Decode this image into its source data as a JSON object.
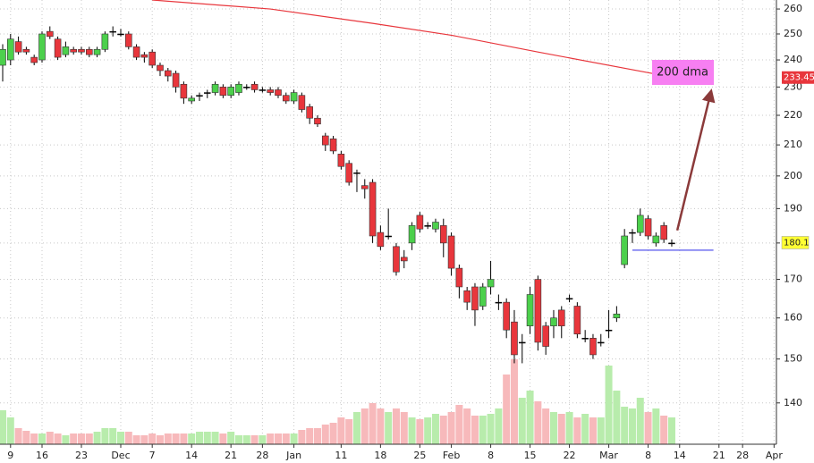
{
  "chart_data": {
    "type": "candlestick",
    "x": [
      0,
      1,
      2,
      3,
      4,
      5,
      6,
      7,
      8,
      9,
      10,
      11,
      12,
      13,
      14,
      15,
      16,
      17,
      18,
      19,
      20,
      21,
      22,
      23,
      24,
      25,
      26,
      27,
      28,
      29,
      30,
      31,
      32,
      33,
      34,
      35,
      36,
      37,
      38,
      39,
      40,
      41,
      42,
      43,
      44,
      45,
      46,
      47,
      48,
      49,
      50,
      51,
      52,
      53,
      54,
      55,
      56,
      57,
      58,
      59,
      60,
      61,
      62,
      63,
      64,
      65,
      66,
      67,
      68,
      69,
      70,
      71,
      72,
      73,
      74,
      75,
      76,
      77,
      78,
      79,
      80,
      81,
      82,
      83,
      84,
      85
    ],
    "open": [
      238,
      240,
      247,
      244,
      241,
      240,
      251,
      248,
      242,
      244,
      244,
      244,
      242,
      244,
      251,
      250,
      250,
      245,
      242,
      243,
      238,
      236,
      235,
      231,
      225,
      227,
      228,
      228,
      230,
      227,
      228,
      230,
      231,
      229,
      229,
      229,
      227,
      225,
      227,
      223,
      219,
      213,
      212,
      207,
      204,
      201,
      197,
      198,
      183,
      182,
      179,
      176,
      180,
      188,
      185,
      184,
      185,
      182,
      173,
      167,
      168,
      163,
      168,
      164,
      164,
      159,
      154,
      158,
      170,
      158,
      158,
      162,
      165,
      163,
      155,
      155,
      154,
      157,
      160,
      174,
      183,
      183,
      187,
      180,
      185,
      180
    ],
    "high": [
      246,
      250,
      249,
      245,
      242,
      251,
      253,
      249,
      247,
      245,
      245,
      245,
      245,
      251,
      253,
      252,
      251,
      246,
      243,
      244,
      239,
      237,
      236,
      232,
      227,
      228,
      229,
      232,
      231,
      231,
      232,
      231,
      232,
      230,
      230,
      230,
      228,
      229,
      228,
      224,
      220,
      214,
      213,
      208,
      205,
      202,
      199,
      199,
      185,
      190,
      180,
      178,
      186,
      189,
      186,
      187,
      187,
      183,
      174,
      168,
      169,
      169,
      175,
      166,
      165,
      162,
      156,
      168,
      171,
      159,
      162,
      163,
      166,
      164,
      157,
      156,
      156,
      162,
      163,
      184,
      184,
      190,
      188,
      183,
      186,
      181
    ],
    "low": [
      232,
      238,
      242,
      242,
      238,
      239,
      248,
      240,
      241,
      242,
      242,
      241,
      241,
      243,
      249,
      249,
      244,
      240,
      239,
      237,
      234,
      232,
      228,
      224,
      224,
      225,
      226,
      227,
      226,
      226,
      227,
      229,
      228,
      228,
      227,
      226,
      224,
      224,
      221,
      217,
      216,
      208,
      207,
      202,
      197,
      195,
      193,
      180,
      178,
      181,
      171,
      173,
      178,
      183,
      184,
      183,
      176,
      171,
      165,
      162,
      158,
      162,
      166,
      162,
      155,
      149,
      149,
      156,
      152,
      151,
      155,
      155,
      164,
      155,
      154,
      150,
      153,
      155,
      159,
      173,
      180,
      182,
      181,
      179,
      180,
      179
    ],
    "close": [
      244,
      248,
      243,
      243,
      239,
      250,
      249,
      241,
      245,
      243,
      243,
      242,
      244,
      250,
      251,
      250,
      245,
      241,
      241,
      238,
      236,
      234,
      230,
      226,
      226,
      227,
      228,
      231,
      227,
      230,
      231,
      230,
      229,
      229,
      228,
      227,
      225,
      228,
      222,
      219,
      217,
      210,
      208,
      203,
      198,
      201,
      196,
      182,
      179,
      182,
      172,
      175,
      185,
      184,
      185,
      186,
      180,
      173,
      168,
      164,
      162,
      168,
      170,
      164,
      157,
      151,
      154,
      166,
      154,
      153,
      160,
      158,
      165,
      156,
      155,
      151,
      154,
      157,
      161,
      182,
      183,
      188,
      182,
      182,
      181,
      180
    ],
    "volume": [
      38,
      30,
      18,
      15,
      12,
      12,
      14,
      12,
      10,
      12,
      12,
      12,
      14,
      18,
      18,
      14,
      14,
      10,
      10,
      12,
      10,
      12,
      12,
      12,
      12,
      14,
      14,
      14,
      12,
      14,
      10,
      10,
      10,
      10,
      12,
      12,
      12,
      12,
      16,
      18,
      18,
      22,
      24,
      30,
      28,
      36,
      40,
      46,
      40,
      36,
      40,
      36,
      30,
      28,
      30,
      34,
      32,
      36,
      44,
      40,
      32,
      32,
      34,
      40,
      78,
      95,
      52,
      60,
      48,
      40,
      36,
      34,
      36,
      30,
      34,
      30,
      30,
      88,
      60,
      42,
      40,
      52,
      36,
      40,
      32,
      30
    ],
    "volume_lim": [
      0,
      100
    ],
    "up_color": "#4cd04c",
    "down_color": "#e8363c",
    "up_volume_color": "#b8ecac",
    "down_volume_color": "#f7b9bb",
    "xlim": [
      -0.34,
      98.3
    ],
    "xticks": [
      {
        "value": 1,
        "label": "9"
      },
      {
        "value": 5,
        "label": "16"
      },
      {
        "value": 10,
        "label": "23"
      },
      {
        "value": 15,
        "label": "Dec"
      },
      {
        "value": 19,
        "label": "7"
      },
      {
        "value": 24,
        "label": "14"
      },
      {
        "value": 29,
        "label": "21"
      },
      {
        "value": 33,
        "label": "28"
      },
      {
        "value": 37,
        "label": "Jan"
      },
      {
        "value": 43,
        "label": "11"
      },
      {
        "value": 48,
        "label": "18"
      },
      {
        "value": 53,
        "label": "25"
      },
      {
        "value": 57,
        "label": "Feb"
      },
      {
        "value": 62,
        "label": "8"
      },
      {
        "value": 67,
        "label": "15"
      },
      {
        "value": 72,
        "label": "22"
      },
      {
        "value": 77,
        "label": "Mar"
      },
      {
        "value": 82,
        "label": "8"
      },
      {
        "value": 86,
        "label": "14"
      },
      {
        "value": 91,
        "label": "21"
      },
      {
        "value": 94,
        "label": "28"
      },
      {
        "value": 98,
        "label": "Apr"
      }
    ],
    "ylim": [
      131.2,
      263.7
    ],
    "log_y": true,
    "yticks": [
      140,
      150,
      160,
      170,
      180,
      190,
      200,
      210,
      220,
      230,
      240,
      250,
      260
    ],
    "grid": true,
    "dma": {
      "name": "200 dma",
      "color": "#e8363c",
      "x": [
        19,
        34,
        47,
        57,
        68,
        83
      ],
      "values": [
        263.7,
        260,
        254.2,
        249.5,
        243,
        234.7
      ],
      "last": 233.45
    },
    "last_price": {
      "value": 180.1,
      "color": "#ffff33"
    },
    "support": {
      "value": 178,
      "x": [
        80,
        90.3
      ],
      "color": "#7070f0"
    },
    "arrow": {
      "x": [
        85.7,
        90
      ],
      "y": [
        183.6,
        228.5
      ],
      "color": "#8b3a3a"
    }
  }
}
